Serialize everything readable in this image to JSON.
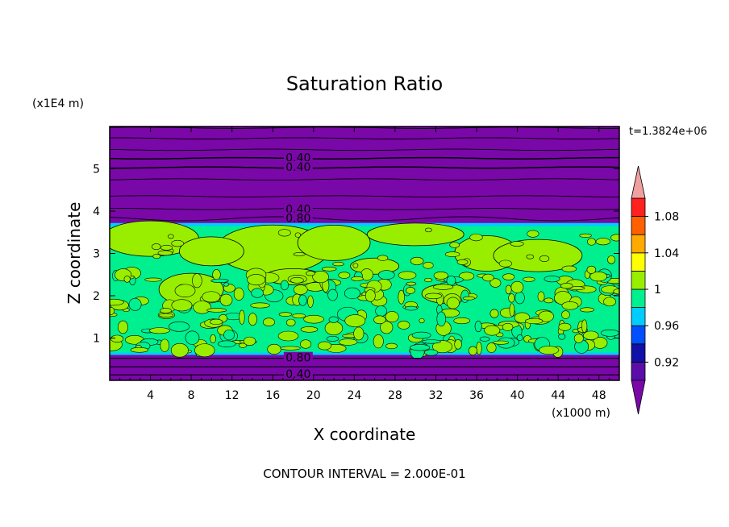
{
  "chart_data": {
    "type": "heatmap",
    "title": "Saturation Ratio",
    "xlabel": "X coordinate",
    "ylabel": "Z coordinate",
    "x_unit": "(x1000 m)",
    "y_unit": "(x1E4 m)",
    "time_label": "t=1.3824e+06",
    "footer": "CONTOUR INTERVAL = 2.000E-01",
    "xlim": [
      0,
      50
    ],
    "ylim": [
      0,
      6
    ],
    "x_ticks": [
      "4",
      "8",
      "12",
      "16",
      "20",
      "24",
      "28",
      "32",
      "36",
      "40",
      "44",
      "48"
    ],
    "y_ticks": [
      "1",
      "2",
      "3",
      "4",
      "5"
    ],
    "x_tick_values": [
      4,
      8,
      12,
      16,
      20,
      24,
      28,
      32,
      36,
      40,
      44,
      48
    ],
    "y_tick_values": [
      1,
      2,
      3,
      4,
      5
    ],
    "colorbar": {
      "levels": [
        0.9,
        0.92,
        0.94,
        0.96,
        0.98,
        1.0,
        1.02,
        1.04,
        1.06,
        1.08,
        1.1
      ],
      "colors": [
        "#5a0da8",
        "#1010a8",
        "#0050ff",
        "#00ccff",
        "#00f090",
        "#99ee00",
        "#ffff00",
        "#ffaa00",
        "#ff6000",
        "#ff2020"
      ],
      "under_color": "#7a07a8",
      "over_color": "#f0a0a0",
      "labels": [
        "0.92",
        "0.96",
        "1",
        "1.04",
        "1.08"
      ],
      "label_values": [
        0.92,
        0.96,
        1.0,
        1.04,
        1.08
      ]
    },
    "contour_labels": [
      {
        "text": "0.40",
        "x": 18.5,
        "z": 5.25
      },
      {
        "text": "0.40",
        "x": 18.5,
        "z": 5.03
      },
      {
        "text": "0.40",
        "x": 18.5,
        "z": 4.03
      },
      {
        "text": "0.80",
        "x": 18.5,
        "z": 3.82
      },
      {
        "text": "0.80",
        "x": 18.5,
        "z": 0.52
      },
      {
        "text": "0.40",
        "x": 18.5,
        "z": 0.13
      }
    ],
    "regions": {
      "lower_dry_layer": [
        0,
        0.6
      ],
      "cloud_layer": [
        0.6,
        3.7
      ],
      "upper_dry_layer": [
        3.7,
        6.0
      ],
      "dry_layer_value": 0.4,
      "cloud_value_range": [
        0.96,
        1.02
      ]
    }
  }
}
